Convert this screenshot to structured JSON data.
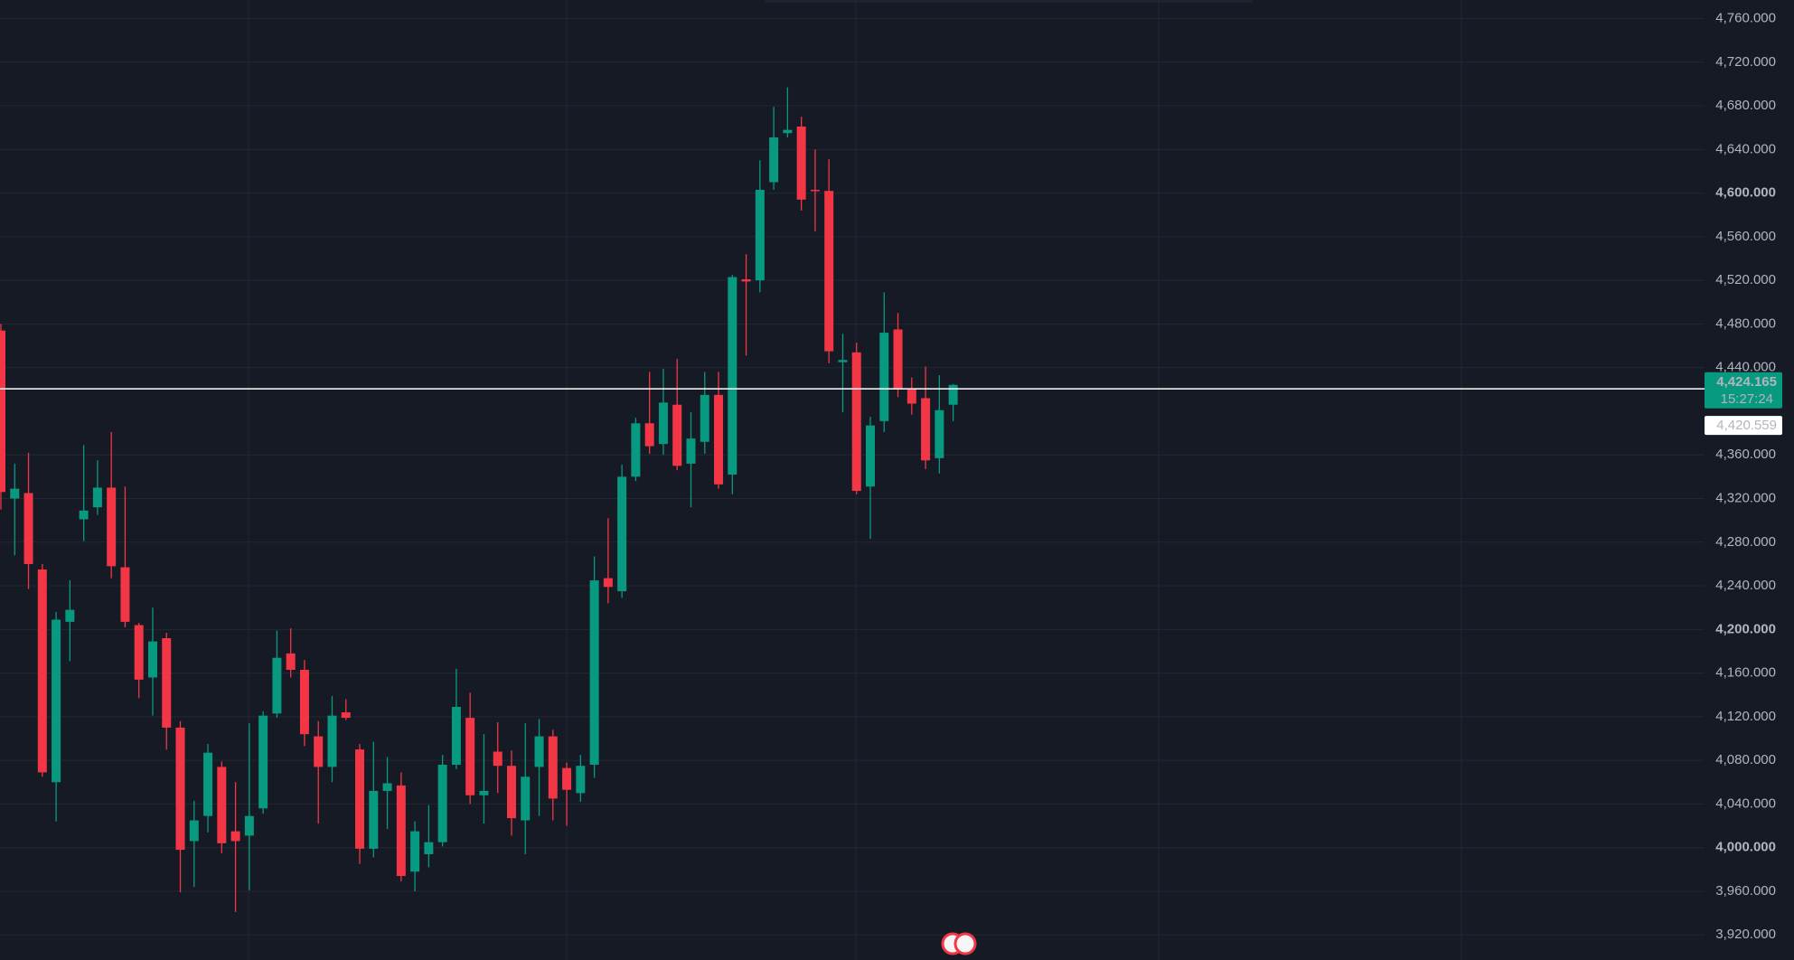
{
  "chart_data": {
    "type": "candlestick",
    "up_color": "#089981",
    "down_color": "#f23645",
    "ylim": [
      3897,
      4777
    ],
    "yticks": [
      {
        "value": 3920,
        "label": "3,920.000"
      },
      {
        "value": 3960,
        "label": "3,960.000"
      },
      {
        "value": 4000,
        "label": "4,000.000"
      },
      {
        "value": 4040,
        "label": "4,040.000"
      },
      {
        "value": 4080,
        "label": "4,080.000"
      },
      {
        "value": 4120,
        "label": "4,120.000"
      },
      {
        "value": 4160,
        "label": "4,160.000"
      },
      {
        "value": 4200,
        "label": "4,200.000"
      },
      {
        "value": 4240,
        "label": "4,240.000"
      },
      {
        "value": 4280,
        "label": "4,280.000"
      },
      {
        "value": 4320,
        "label": "4,320.000"
      },
      {
        "value": 4360,
        "label": "4,360.000"
      },
      {
        "value": 4440,
        "label": "4,440.000"
      },
      {
        "value": 4480,
        "label": "4,480.000"
      },
      {
        "value": 4520,
        "label": "4,520.000"
      },
      {
        "value": 4560,
        "label": "4,560.000"
      },
      {
        "value": 4600,
        "label": "4,600.000"
      },
      {
        "value": 4640,
        "label": "4,640.000"
      },
      {
        "value": 4680,
        "label": "4,680.000"
      },
      {
        "value": 4720,
        "label": "4,720.000"
      },
      {
        "value": 4760,
        "label": "4,760.000"
      }
    ],
    "grid": true,
    "open": [
      4474,
      4320,
      4325,
      4255,
      4060,
      4207,
      4301,
      4312,
      4330,
      4257,
      4204,
      4156,
      4192,
      4110,
      4006,
      4029,
      4074,
      4015,
      4011,
      4036,
      4123,
      4178,
      4163,
      4102,
      4074,
      4124,
      4090,
      3999,
      4052,
      4057,
      3978,
      3994,
      4005,
      4076,
      4119,
      4048,
      4088,
      4075,
      4025,
      4074,
      4102,
      4073,
      4050,
      4076,
      4247,
      4235,
      4340,
      4389,
      4370,
      4406,
      4352,
      4372,
      4415,
      4342,
      4521,
      4520,
      4610,
      4655,
      4661,
      4603,
      4602,
      4445,
      4454,
      4331,
      4391,
      4475,
      4421,
      4412,
      4357,
      4406
    ],
    "high": [
      4480,
      4352,
      4362,
      4260,
      4216,
      4245,
      4369,
      4355,
      4381,
      4331,
      4206,
      4220,
      4197,
      4116,
      4043,
      4095,
      4079,
      4060,
      4114,
      4125,
      4199,
      4201,
      4172,
      4116,
      4139,
      4136,
      4095,
      4097,
      4083,
      4069,
      4024,
      4039,
      4085,
      4164,
      4142,
      4104,
      4115,
      4089,
      4114,
      4118,
      4108,
      4078,
      4085,
      4267,
      4302,
      4351,
      4394,
      4436,
      4439,
      4448,
      4399,
      4436,
      4436,
      4525,
      4544,
      4630,
      4679,
      4697,
      4670,
      4640,
      4631,
      4471,
      4463,
      4395,
      4509,
      4490,
      4431,
      4441,
      4433,
      4425
    ],
    "low": [
      4310,
      4268,
      4237,
      4065,
      4024,
      4171,
      4281,
      4305,
      4247,
      4202,
      4137,
      4121,
      4090,
      3959,
      3964,
      4014,
      3995,
      3941,
      3961,
      4031,
      4119,
      4156,
      4093,
      4022,
      4060,
      4117,
      3985,
      3991,
      4017,
      3969,
      3960,
      3982,
      4001,
      4072,
      4040,
      4022,
      4050,
      4011,
      3994,
      4029,
      4025,
      4020,
      4042,
      4064,
      4224,
      4229,
      4336,
      4361,
      4360,
      4346,
      4312,
      4361,
      4329,
      4324,
      4451,
      4509,
      4603,
      4651,
      4584,
      4565,
      4444,
      4399,
      4324,
      4283,
      4381,
      4413,
      4397,
      4347,
      4343,
      4391
    ],
    "close": [
      4326,
      4329,
      4260,
      4069,
      4209,
      4218,
      4309,
      4330,
      4258,
      4207,
      4154,
      4189,
      4110,
      3998,
      4025,
      4087,
      4004,
      4006,
      4029,
      4121,
      4174,
      4163,
      4104,
      4074,
      4121,
      4119,
      3999,
      4052,
      4059,
      3974,
      4015,
      4005,
      4076,
      4129,
      4048,
      4052,
      4075,
      4027,
      4065,
      4102,
      4045,
      4053,
      4075,
      4245,
      4239,
      4340,
      4389,
      4368,
      4408,
      4350,
      4375,
      4415,
      4333,
      4523,
      4519,
      4603,
      4651,
      4658,
      4594,
      4602,
      4455,
      4447,
      4327,
      4387,
      4472,
      4420,
      4407,
      4355,
      4401,
      4424.165
    ],
    "last_price": {
      "value": 4424.165,
      "label": "4,424.165"
    },
    "countdown": "15:27:24",
    "ref_price": {
      "value": 4420.559,
      "label": "4,420.559"
    }
  }
}
